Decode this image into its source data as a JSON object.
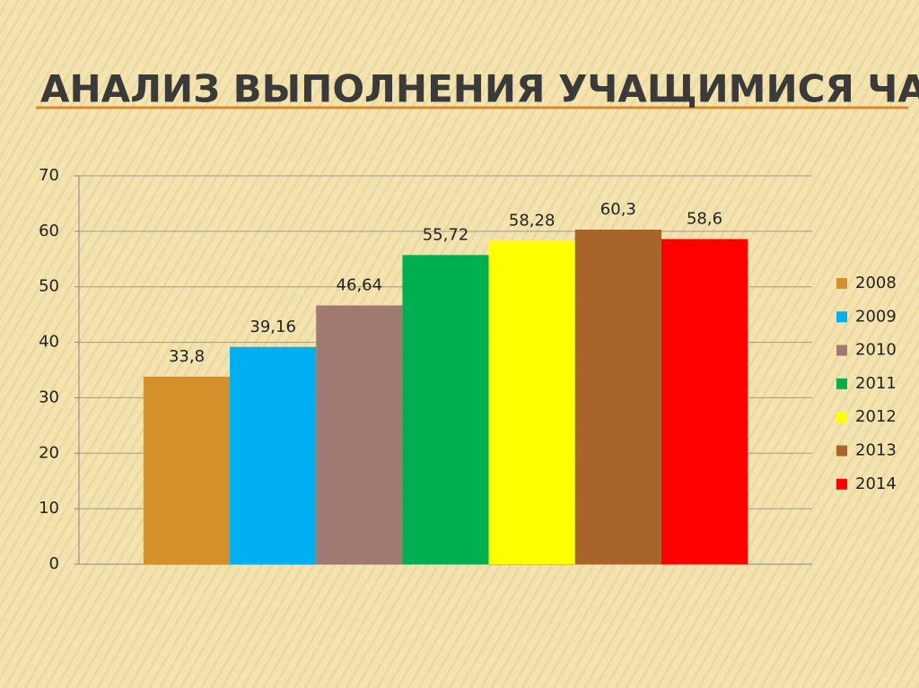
{
  "chart_data": {
    "type": "bar",
    "title": "АНАЛИЗ ВЫПОЛНЕНИЯ УЧАЩИМИСЯ ЧАСТИ В",
    "categories": [
      null
    ],
    "series": [
      {
        "name": "2008",
        "color": "#d4902a",
        "values": [
          33.8
        ],
        "value_labels": [
          "33,8"
        ]
      },
      {
        "name": "2009",
        "color": "#00b0f0",
        "values": [
          39.16
        ],
        "value_labels": [
          "39,16"
        ]
      },
      {
        "name": "2010",
        "color": "#a07a70",
        "values": [
          46.64
        ],
        "value_labels": [
          "46,64"
        ]
      },
      {
        "name": "2011",
        "color": "#00b050",
        "values": [
          55.72
        ],
        "value_labels": [
          "55,72"
        ]
      },
      {
        "name": "2012",
        "color": "#ffff00",
        "values": [
          58.28
        ],
        "value_labels": [
          "58,28"
        ]
      },
      {
        "name": "2013",
        "color": "#a8642a",
        "values": [
          60.3
        ],
        "value_labels": [
          "60,3"
        ]
      },
      {
        "name": "2014",
        "color": "#ff0000",
        "values": [
          58.6
        ],
        "value_labels": [
          "58,6"
        ]
      }
    ],
    "ylim": [
      0,
      70
    ],
    "yticks": [
      0,
      10,
      20,
      30,
      40,
      50,
      60,
      70
    ],
    "grid": true,
    "legend": "right"
  }
}
